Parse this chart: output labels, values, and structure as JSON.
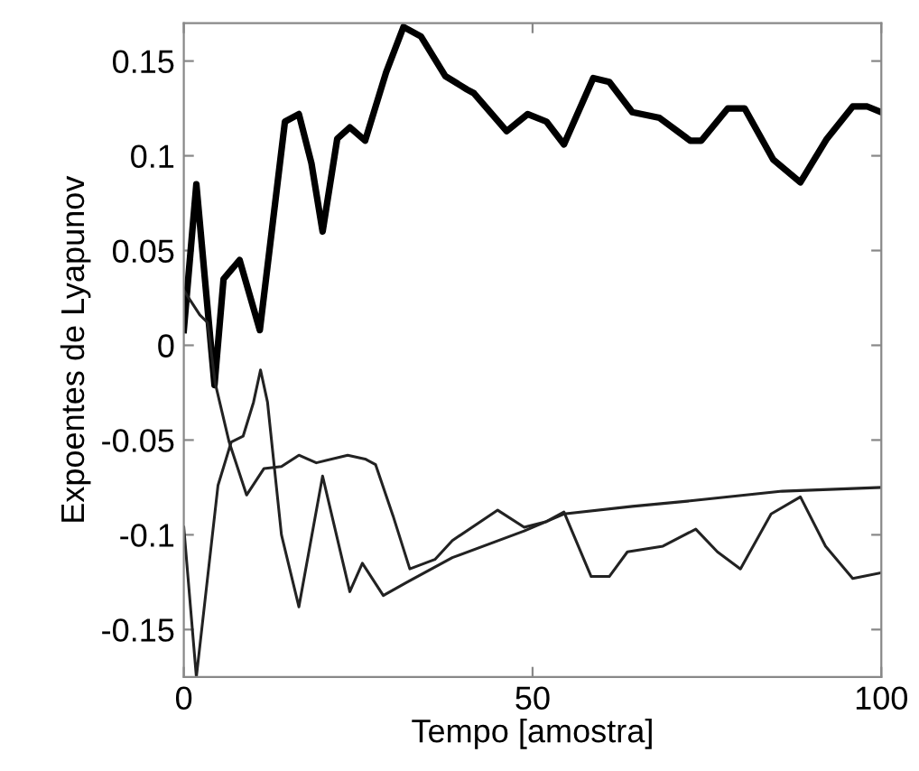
{
  "chart_data": {
    "type": "line",
    "xlabel": "Tempo [amostra]",
    "ylabel": "Expoentes de Lyapunov",
    "xlim": [
      0,
      100
    ],
    "ylim": [
      -0.175,
      0.17
    ],
    "xticks": [
      0,
      50,
      100
    ],
    "yticks": [
      -0.15,
      -0.1,
      -0.05,
      0,
      0.05,
      0.1,
      0.15
    ],
    "grid": false,
    "legend": false,
    "marker": "none",
    "line_style": "solid",
    "series": [
      {
        "color": "#000000",
        "x": [
          0,
          1.8,
          4.4,
          5.7,
          8,
          10.9,
          14.5,
          16.5,
          18.3,
          19.9,
          22,
          23.8,
          26,
          29,
          31.5,
          34,
          37.5,
          40.6,
          41.6,
          46.3,
          49.3,
          52,
          54.5,
          58.7,
          61,
          64.3,
          68.2,
          72.6,
          74.2,
          78,
          80.4,
          84.5,
          88.4,
          92.2,
          95.9,
          98,
          100
        ],
        "values": [
          0.008,
          0.085,
          -0.021,
          0.035,
          0.045,
          0.008,
          0.118,
          0.122,
          0.096,
          0.06,
          0.109,
          0.115,
          0.108,
          0.144,
          0.168,
          0.163,
          0.142,
          0.135,
          0.133,
          0.113,
          0.122,
          0.118,
          0.106,
          0.141,
          0.139,
          0.123,
          0.12,
          0.108,
          0.108,
          0.125,
          0.125,
          0.098,
          0.086,
          0.109,
          0.126,
          0.126,
          0.123
        ]
      },
      {
        "color": "#222222",
        "x": [
          0,
          1.8,
          4.9,
          6.8,
          8.5,
          10,
          11,
          12,
          14,
          16.5,
          19.9,
          23.8,
          25.6,
          28.6,
          32,
          38.5,
          48.8,
          54.5,
          64.3,
          72.9,
          85.8,
          100
        ],
        "values": [
          -0.096,
          -0.175,
          -0.074,
          -0.051,
          -0.048,
          -0.03,
          -0.013,
          -0.03,
          -0.1,
          -0.138,
          -0.069,
          -0.13,
          -0.115,
          -0.132,
          -0.125,
          -0.112,
          -0.098,
          -0.089,
          -0.085,
          -0.082,
          -0.077,
          -0.075
        ]
      },
      {
        "color": "#222222",
        "x": [
          0,
          2.3,
          3.4,
          4.5,
          6.5,
          9,
          11.5,
          14,
          16.5,
          19,
          23.5,
          26,
          27.5,
          30,
          32.4,
          36,
          38.5,
          45,
          48.8,
          52,
          54.5,
          58.4,
          61,
          63.6,
          68.7,
          73.4,
          76.5,
          79.8,
          84.2,
          88.4,
          92,
          95.9,
          100
        ],
        "values": [
          0.029,
          0.016,
          0.012,
          -0.02,
          -0.051,
          -0.079,
          -0.065,
          -0.064,
          -0.058,
          -0.062,
          -0.058,
          -0.06,
          -0.063,
          -0.09,
          -0.118,
          -0.113,
          -0.103,
          -0.087,
          -0.096,
          -0.093,
          -0.088,
          -0.122,
          -0.122,
          -0.109,
          -0.106,
          -0.097,
          -0.109,
          -0.118,
          -0.089,
          -0.08,
          -0.106,
          -0.123,
          -0.12
        ]
      }
    ]
  }
}
